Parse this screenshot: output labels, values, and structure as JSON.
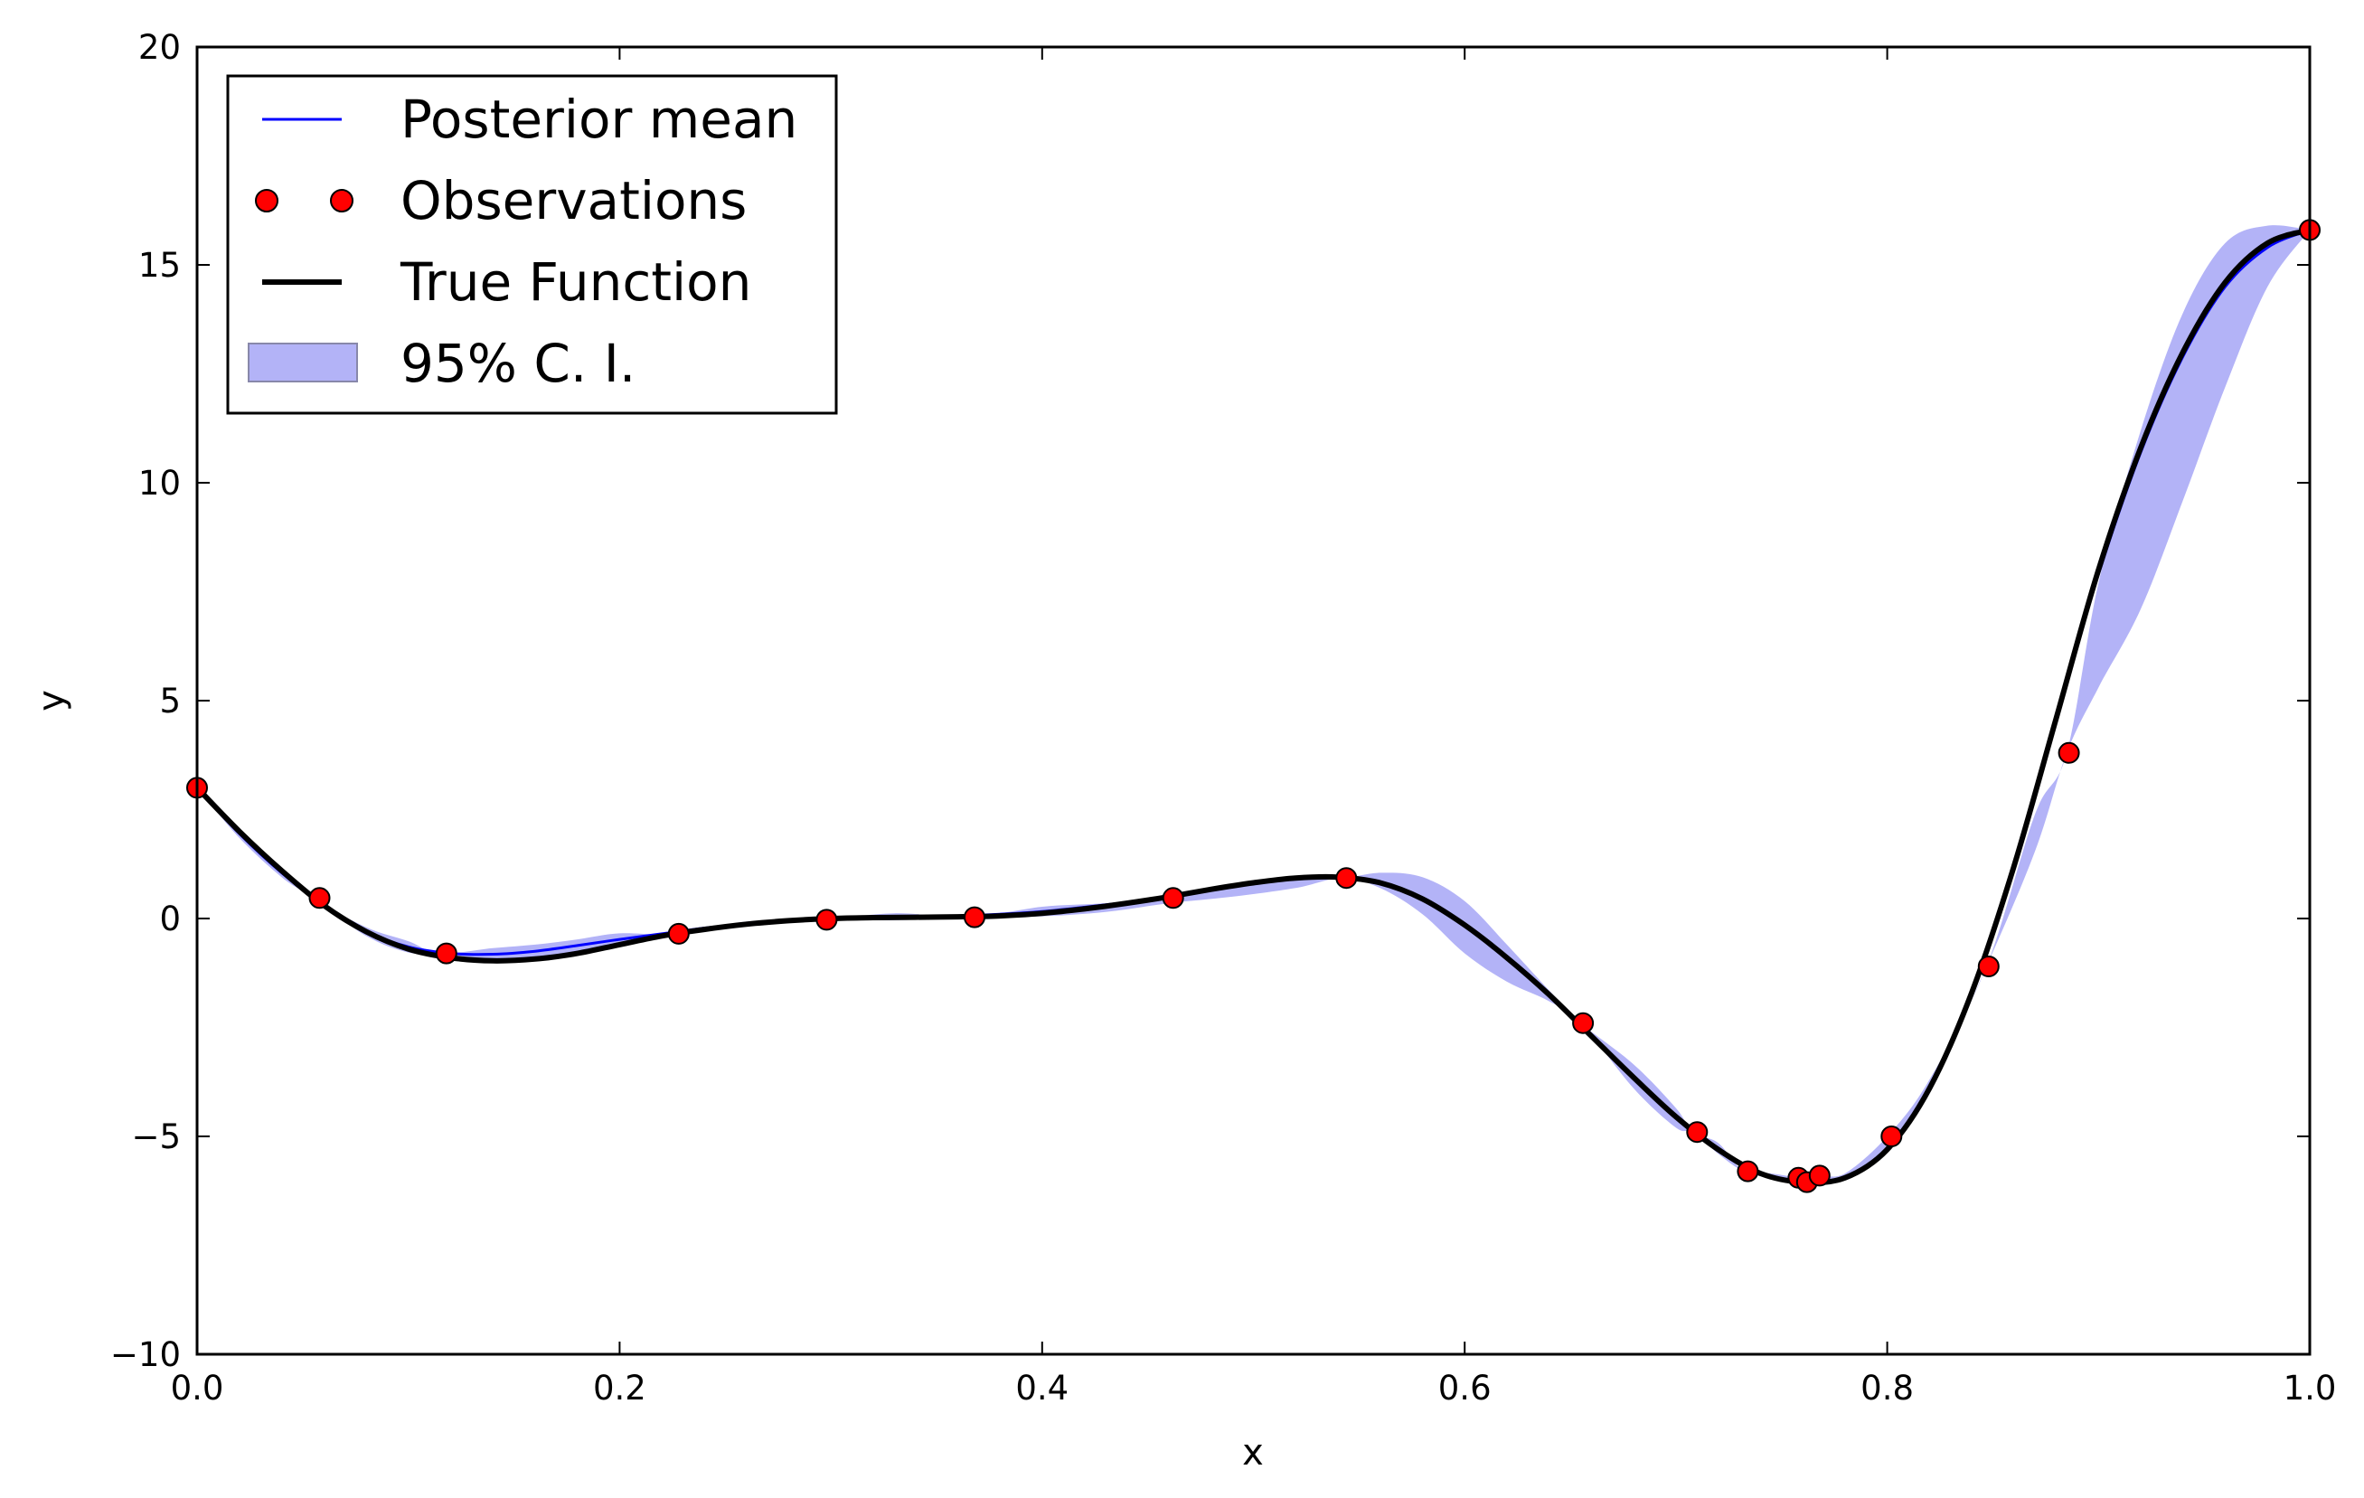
{
  "chart_data": {
    "type": "line",
    "xlabel": "x",
    "ylabel": "y",
    "xlim": [
      0.0,
      1.0
    ],
    "ylim": [
      -10,
      20
    ],
    "xticks": [
      "0.0",
      "0.2",
      "0.4",
      "0.6",
      "0.8",
      "1.0"
    ],
    "yticks": [
      "−10",
      "−5",
      "0",
      "5",
      "10",
      "15",
      "20"
    ],
    "legend_position": "top-left",
    "legend": [
      {
        "label": "Posterior mean",
        "kind": "line",
        "color": "#0000ff"
      },
      {
        "label": "Observations",
        "kind": "marker",
        "color": "#ff0000"
      },
      {
        "label": "True Function",
        "kind": "line",
        "color": "#000000"
      },
      {
        "label": "95% C. I.",
        "kind": "patch",
        "color": "#b3b3f7"
      }
    ],
    "true_function": {
      "x": [
        0.0,
        0.02,
        0.04,
        0.06,
        0.08,
        0.1,
        0.12,
        0.14,
        0.16,
        0.18,
        0.2,
        0.22,
        0.24,
        0.26,
        0.28,
        0.3,
        0.32,
        0.34,
        0.36,
        0.38,
        0.4,
        0.42,
        0.44,
        0.46,
        0.48,
        0.5,
        0.52,
        0.54,
        0.56,
        0.58,
        0.6,
        0.62,
        0.64,
        0.66,
        0.68,
        0.7,
        0.72,
        0.74,
        0.76,
        0.78,
        0.8,
        0.82,
        0.84,
        0.86,
        0.88,
        0.9,
        0.92,
        0.94,
        0.96,
        0.98,
        1.0
      ],
      "y": [
        3.0,
        2.0,
        1.1,
        0.3,
        -0.3,
        -0.7,
        -0.9,
        -0.97,
        -0.93,
        -0.8,
        -0.6,
        -0.4,
        -0.25,
        -0.13,
        -0.05,
        0.0,
        0.02,
        0.03,
        0.04,
        0.06,
        0.12,
        0.22,
        0.35,
        0.5,
        0.67,
        0.82,
        0.93,
        0.95,
        0.82,
        0.45,
        -0.15,
        -0.9,
        -1.75,
        -2.7,
        -3.65,
        -4.55,
        -5.3,
        -5.85,
        -6.05,
        -5.95,
        -5.3,
        -3.9,
        -1.7,
        1.2,
        4.6,
        8.0,
        10.8,
        13.0,
        14.6,
        15.5,
        15.8
      ]
    },
    "posterior_mean": {
      "x": [
        0.0,
        0.02,
        0.04,
        0.06,
        0.08,
        0.1,
        0.12,
        0.14,
        0.16,
        0.18,
        0.2,
        0.22,
        0.24,
        0.26,
        0.28,
        0.3,
        0.32,
        0.34,
        0.36,
        0.38,
        0.4,
        0.42,
        0.44,
        0.46,
        0.48,
        0.5,
        0.52,
        0.54,
        0.56,
        0.58,
        0.6,
        0.62,
        0.64,
        0.66,
        0.68,
        0.7,
        0.72,
        0.74,
        0.76,
        0.78,
        0.8,
        0.82,
        0.84,
        0.86,
        0.88,
        0.9,
        0.92,
        0.94,
        0.96,
        0.98,
        1.0
      ],
      "y": [
        3.0,
        1.95,
        1.05,
        0.3,
        -0.3,
        -0.65,
        -0.8,
        -0.82,
        -0.75,
        -0.62,
        -0.48,
        -0.35,
        -0.22,
        -0.12,
        -0.04,
        0.0,
        0.02,
        0.04,
        0.06,
        0.1,
        0.16,
        0.26,
        0.37,
        0.5,
        0.65,
        0.8,
        0.92,
        0.95,
        0.82,
        0.45,
        -0.15,
        -0.9,
        -1.75,
        -2.7,
        -3.65,
        -4.55,
        -5.3,
        -5.85,
        -6.05,
        -5.95,
        -5.3,
        -3.9,
        -1.7,
        1.2,
        4.6,
        7.9,
        10.7,
        12.9,
        14.5,
        15.4,
        15.8
      ]
    },
    "ci_band": {
      "x": [
        0.0,
        0.02,
        0.04,
        0.055,
        0.08,
        0.1,
        0.115,
        0.14,
        0.16,
        0.18,
        0.2,
        0.225,
        0.26,
        0.295,
        0.33,
        0.365,
        0.4,
        0.43,
        0.46,
        0.49,
        0.52,
        0.542,
        0.56,
        0.58,
        0.6,
        0.62,
        0.64,
        0.655,
        0.68,
        0.7,
        0.708,
        0.72,
        0.732,
        0.745,
        0.757,
        0.762,
        0.768,
        0.78,
        0.8,
        0.82,
        0.847,
        0.87,
        0.885,
        0.9,
        0.92,
        0.94,
        0.96,
        0.98,
        1.0
      ],
      "lower": [
        3.0,
        1.85,
        0.95,
        0.47,
        -0.4,
        -0.78,
        -0.8,
        -0.95,
        -0.92,
        -0.8,
        -0.62,
        -0.35,
        -0.17,
        -0.03,
        -0.04,
        0.03,
        0.05,
        0.15,
        0.35,
        0.5,
        0.7,
        0.93,
        0.7,
        0.1,
        -0.8,
        -1.45,
        -1.9,
        -2.4,
        -3.9,
        -4.8,
        -4.9,
        -5.4,
        -5.8,
        -5.95,
        -5.95,
        -6.05,
        -5.9,
        -6.0,
        -5.35,
        -3.95,
        -1.1,
        1.55,
        3.8,
        5.3,
        7.1,
        9.6,
        12.2,
        14.5,
        15.8
      ],
      "upper": [
        3.0,
        2.05,
        1.15,
        0.47,
        -0.2,
        -0.52,
        -0.8,
        -0.68,
        -0.6,
        -0.48,
        -0.34,
        -0.35,
        -0.07,
        -0.03,
        0.12,
        0.03,
        0.27,
        0.35,
        0.48,
        0.72,
        0.95,
        0.93,
        1.05,
        0.95,
        0.4,
        -0.6,
        -1.65,
        -2.4,
        -3.35,
        -4.35,
        -4.9,
        -5.15,
        -5.8,
        -5.85,
        -5.95,
        -6.05,
        -5.9,
        -5.85,
        -5.0,
        -3.7,
        -1.1,
        2.4,
        3.8,
        7.7,
        11.2,
        13.9,
        15.5,
        15.9,
        15.8
      ]
    },
    "observations": {
      "x": [
        0.0,
        0.058,
        0.118,
        0.228,
        0.298,
        0.368,
        0.462,
        0.544,
        0.656,
        0.71,
        0.734,
        0.758,
        0.762,
        0.768,
        0.802,
        0.848,
        0.886,
        1.0
      ],
      "y": [
        3.0,
        0.47,
        -0.8,
        -0.35,
        -0.03,
        0.03,
        0.47,
        0.93,
        -2.4,
        -4.9,
        -5.8,
        -5.95,
        -6.05,
        -5.9,
        -5.0,
        -1.1,
        3.8,
        15.8
      ]
    }
  }
}
